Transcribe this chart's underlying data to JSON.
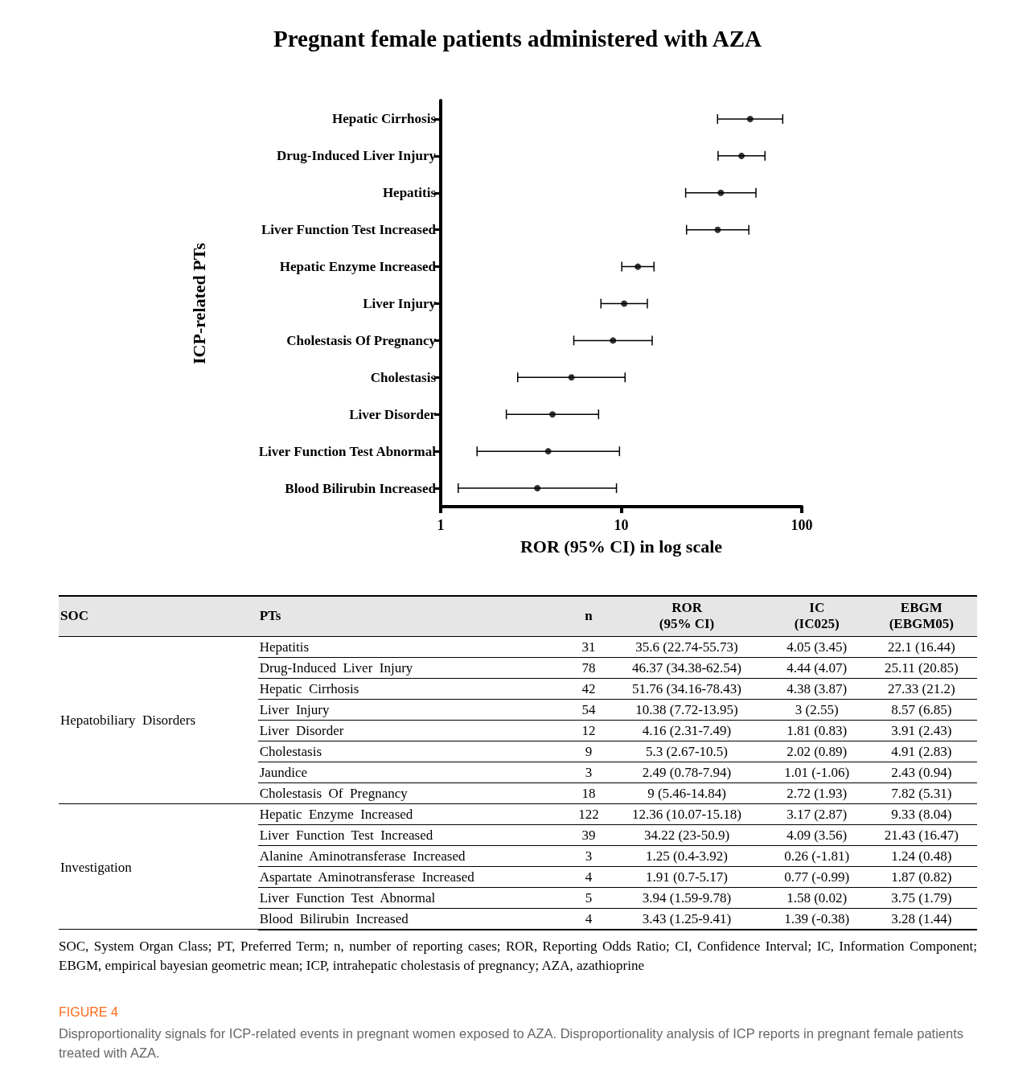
{
  "chart_data": [
    {
      "type": "scatter",
      "orientation": "horizontal",
      "title": "Pregnant female patients administered with AZA",
      "xlabel": "ROR (95% CI) in log scale",
      "ylabel": "ICP-related PTs",
      "categories": [
        "Hepatic Cirrhosis",
        "Drug-Induced Liver Injury",
        "Hepatitis",
        "Liver Function Test Increased",
        "Hepatic Enzyme Increased",
        "Liver Injury",
        "Cholestasis Of Pregnancy",
        "Cholestasis",
        "Liver Disorder",
        "Liver Function Test Abnormal",
        "Blood Bilirubin Increased"
      ],
      "values": [
        51.76,
        46.37,
        35.6,
        34.22,
        12.36,
        10.38,
        9,
        5.3,
        4.16,
        3.94,
        3.43
      ],
      "errors": [
        [
          34.16,
          78.43
        ],
        [
          34.38,
          62.54
        ],
        [
          22.74,
          55.73
        ],
        [
          23,
          50.9
        ],
        [
          10.07,
          15.18
        ],
        [
          7.72,
          13.95
        ],
        [
          5.46,
          14.84
        ],
        [
          2.67,
          10.5
        ],
        [
          2.31,
          7.49
        ],
        [
          1.59,
          9.78
        ],
        [
          1.25,
          9.41
        ]
      ],
      "color": "#000000",
      "marker": "circle",
      "log": "x",
      "xlim": [
        1,
        100
      ],
      "xticks": [
        1,
        10,
        100
      ],
      "grid": false
    },
    {
      "type": "other",
      "categories": [
        "SOC",
        "PTs",
        "n",
        "ROR\n(95% CI)",
        "IC\n(IC025)",
        "EBGM\n(EBGM05)"
      ],
      "cell_labels": [
        [
          "Hepatobiliary  Disorders",
          "Hepatitis",
          "31",
          "35.6 (22.74-55.73)",
          "4.05 (3.45)",
          "22.1 (16.44)"
        ],
        [
          null,
          "Drug-Induced  Liver  Injury",
          "78",
          "46.37 (34.38-62.54)",
          "4.44 (4.07)",
          "25.11 (20.85)"
        ],
        [
          null,
          "Hepatic  Cirrhosis",
          "42",
          "51.76 (34.16-78.43)",
          "4.38 (3.87)",
          "27.33 (21.2)"
        ],
        [
          null,
          "Liver  Injury",
          "54",
          "10.38 (7.72-13.95)",
          "3 (2.55)",
          "8.57 (6.85)"
        ],
        [
          null,
          "Liver  Disorder",
          "12",
          "4.16 (2.31-7.49)",
          "1.81 (0.83)",
          "3.91 (2.43)"
        ],
        [
          null,
          "Cholestasis",
          "9",
          "5.3 (2.67-10.5)",
          "2.02 (0.89)",
          "4.91 (2.83)"
        ],
        [
          null,
          "Jaundice",
          "3",
          "2.49 (0.78-7.94)",
          "1.01 (-1.06)",
          "2.43 (0.94)"
        ],
        [
          null,
          "Cholestasis  Of  Pregnancy",
          "18",
          "9 (5.46-14.84)",
          "2.72 (1.93)",
          "7.82 (5.31)"
        ],
        [
          "Investigation",
          "Hepatic  Enzyme  Increased",
          "122",
          "12.36 (10.07-15.18)",
          "3.17 (2.87)",
          "9.33 (8.04)"
        ],
        [
          null,
          "Liver  Function  Test  Increased",
          "39",
          "34.22 (23-50.9)",
          "4.09 (3.56)",
          "21.43 (16.47)"
        ],
        [
          null,
          "Alanine  Aminotransferase  Increased",
          "3",
          "1.25 (0.4-3.92)",
          "0.26 (-1.81)",
          "1.24 (0.48)"
        ],
        [
          null,
          "Aspartate  Aminotransferase  Increased",
          "4",
          "1.91 (0.7-5.17)",
          "0.77 (-0.99)",
          "1.87 (0.82)"
        ],
        [
          null,
          "Liver  Function  Test  Abnormal",
          "5",
          "3.94 (1.59-9.78)",
          "1.58 (0.02)",
          "3.75 (1.79)"
        ],
        [
          null,
          "Blood  Bilirubin  Increased",
          "4",
          "3.43 (1.25-9.41)",
          "1.39 (-0.38)",
          "3.28 (1.44)"
        ]
      ],
      "annotations": [
        "SOC, System Organ Class; PT, Preferred Term; n, number of reporting cases; ROR, Reporting Odds Ratio; CI, Confidence Interval; IC, Information Component; EBGM, empirical bayesian geometric mean; ICP, intrahepatic cholestasis of pregnancy; AZA, azathioprine",
        "FIGURE 4",
        "Disproportionality signals for ICP-related events in pregnant women exposed to AZA. Disproportionality analysis of ICP reports in pregnant female patients treated with AZA."
      ]
    }
  ]
}
